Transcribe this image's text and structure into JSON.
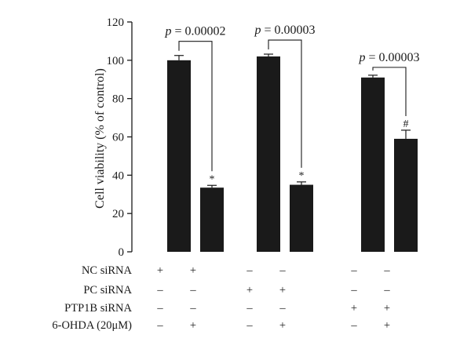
{
  "chart_data": {
    "type": "bar",
    "ylabel": "Cell viability (% of control)",
    "ylim": [
      0,
      120
    ],
    "yticks": [
      0,
      20,
      40,
      60,
      80,
      100,
      120
    ],
    "grid": false,
    "legend": "none",
    "bar_color": "#1a1a1a",
    "bars": [
      {
        "value": 100,
        "error": 2.5,
        "mark": ""
      },
      {
        "value": 33.5,
        "error": 1.2,
        "mark": "*"
      },
      {
        "value": 102,
        "error": 1.2,
        "mark": ""
      },
      {
        "value": 35,
        "error": 1.5,
        "mark": "*"
      },
      {
        "value": 91,
        "error": 1.2,
        "mark": ""
      },
      {
        "value": 59,
        "error": 4.5,
        "mark": "#"
      }
    ],
    "comparisons": [
      {
        "from": 0,
        "to": 1,
        "p_prefix": "p",
        "p_value": "= 0.00002"
      },
      {
        "from": 2,
        "to": 3,
        "p_prefix": "p",
        "p_value": "= 0.00003"
      },
      {
        "from": 4,
        "to": 5,
        "p_prefix": "p",
        "p_value": "= 0.00003"
      }
    ],
    "conditions": [
      {
        "label": "NC siRNA",
        "marks": [
          "+",
          "+",
          "–",
          "–",
          "–",
          "–"
        ]
      },
      {
        "label": "PC siRNA",
        "marks": [
          "–",
          "–",
          "+",
          "+",
          "–",
          "–"
        ]
      },
      {
        "label": "PTP1B siRNA",
        "marks": [
          "–",
          "–",
          "–",
          "–",
          "+",
          "+"
        ]
      },
      {
        "label": "6-OHDA (20μM)",
        "marks": [
          "–",
          "+",
          "–",
          "+",
          "–",
          "+"
        ]
      }
    ]
  }
}
